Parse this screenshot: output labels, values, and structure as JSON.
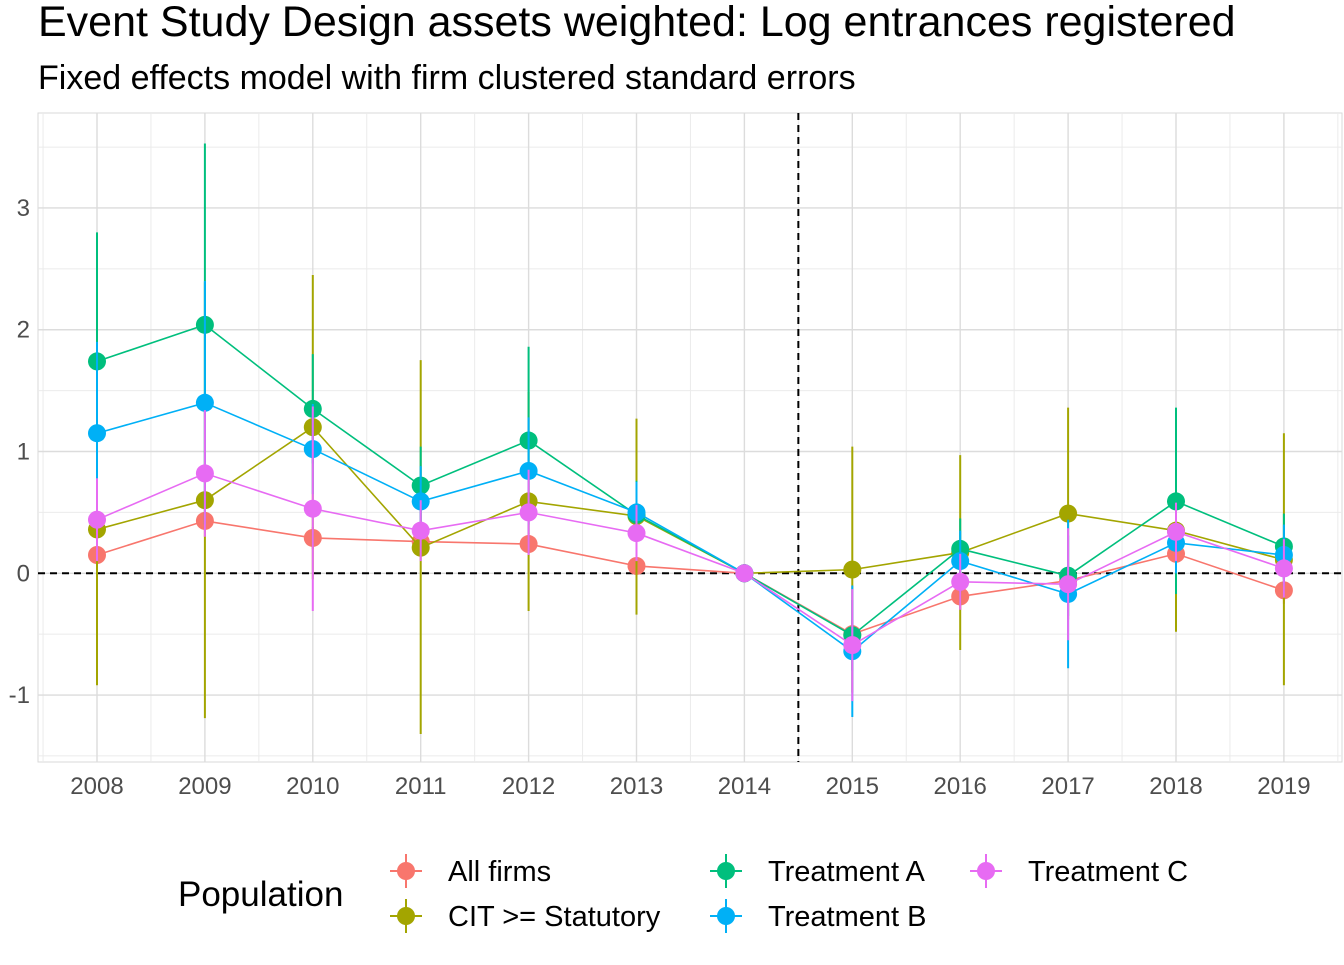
{
  "chart_data": {
    "type": "line",
    "title": "Event Study Design assets weighted: Log entrances registered",
    "subtitle": "Fixed effects model with firm clustered standard errors",
    "xlabel": "",
    "ylabel": "",
    "x": [
      "2008",
      "2009",
      "2010",
      "2011",
      "2012",
      "2013",
      "2014",
      "2015",
      "2016",
      "2017",
      "2018",
      "2019"
    ],
    "ylim": [
      -1.55,
      3.78
    ],
    "yticks": [
      "-1",
      "0",
      "1",
      "2",
      "3"
    ],
    "grid": true,
    "reference_lines": {
      "horizontal_y": 0,
      "vertical_between": [
        "2014",
        "2015"
      ]
    },
    "legend": {
      "title": "Population",
      "position": "bottom",
      "layout": [
        [
          "All firms",
          "CIT >= Statutory"
        ],
        [
          "Treatment A",
          "Treatment B"
        ],
        [
          "Treatment C"
        ]
      ]
    },
    "series": [
      {
        "name": "All firms",
        "color": "#F8766D",
        "values": [
          0.15,
          0.43,
          0.29,
          0.26,
          0.24,
          0.06,
          0.0,
          -0.5,
          -0.19,
          -0.06,
          0.16,
          -0.14
        ],
        "lower": [
          0.0,
          0.3,
          0.2,
          0.18,
          0.15,
          0.0,
          0.0,
          -0.62,
          -0.3,
          -0.15,
          0.05,
          -0.25
        ],
        "upper": [
          0.3,
          0.56,
          0.38,
          0.34,
          0.33,
          0.12,
          0.0,
          -0.38,
          -0.08,
          0.03,
          0.27,
          -0.03
        ]
      },
      {
        "name": "CIT >= Statutory",
        "color": "#A3A500",
        "values": [
          0.36,
          0.6,
          1.2,
          0.21,
          0.59,
          0.47,
          0.0,
          0.03,
          0.17,
          0.49,
          0.35,
          0.11
        ],
        "lower": [
          -0.92,
          -1.19,
          -0.05,
          -1.32,
          -0.31,
          -0.34,
          0.0,
          -0.98,
          -0.63,
          -0.38,
          -0.48,
          -0.92
        ],
        "upper": [
          1.64,
          2.39,
          2.45,
          1.75,
          1.49,
          1.27,
          0.0,
          1.04,
          0.97,
          1.36,
          1.19,
          1.15
        ]
      },
      {
        "name": "Treatment A",
        "color": "#00BF7D",
        "values": [
          1.74,
          2.04,
          1.35,
          0.72,
          1.09,
          0.48,
          0.0,
          -0.51,
          0.2,
          -0.02,
          0.59,
          0.22
        ],
        "lower": [
          0.68,
          0.55,
          0.9,
          0.4,
          0.32,
          0.2,
          0.0,
          -0.8,
          -0.05,
          -0.35,
          -0.17,
          -0.05
        ],
        "upper": [
          2.8,
          3.53,
          1.8,
          1.04,
          1.86,
          0.76,
          0.0,
          -0.22,
          0.45,
          0.31,
          1.36,
          0.49
        ]
      },
      {
        "name": "Treatment B",
        "color": "#00B0F6",
        "values": [
          1.15,
          1.4,
          1.02,
          0.59,
          0.84,
          0.5,
          0.0,
          -0.64,
          0.1,
          -0.17,
          0.25,
          0.15
        ],
        "lower": [
          0.4,
          0.4,
          0.65,
          0.3,
          0.4,
          0.25,
          0.0,
          -1.18,
          -0.15,
          -0.78,
          0.0,
          -0.1
        ],
        "upper": [
          1.9,
          2.4,
          1.39,
          0.88,
          1.28,
          0.75,
          0.0,
          -0.1,
          0.35,
          0.44,
          0.5,
          0.4
        ]
      },
      {
        "name": "Treatment C",
        "color": "#E76BF3",
        "values": [
          0.44,
          0.82,
          0.53,
          0.35,
          0.5,
          0.33,
          0.0,
          -0.59,
          -0.07,
          -0.09,
          0.34,
          0.04
        ],
        "lower": [
          0.1,
          0.3,
          -0.31,
          0.1,
          0.15,
          0.1,
          0.0,
          -1.05,
          -0.3,
          -0.55,
          0.1,
          -0.2
        ],
        "upper": [
          0.78,
          1.34,
          1.37,
          0.6,
          0.85,
          0.56,
          0.0,
          -0.13,
          0.16,
          0.37,
          0.58,
          0.28
        ]
      }
    ]
  }
}
